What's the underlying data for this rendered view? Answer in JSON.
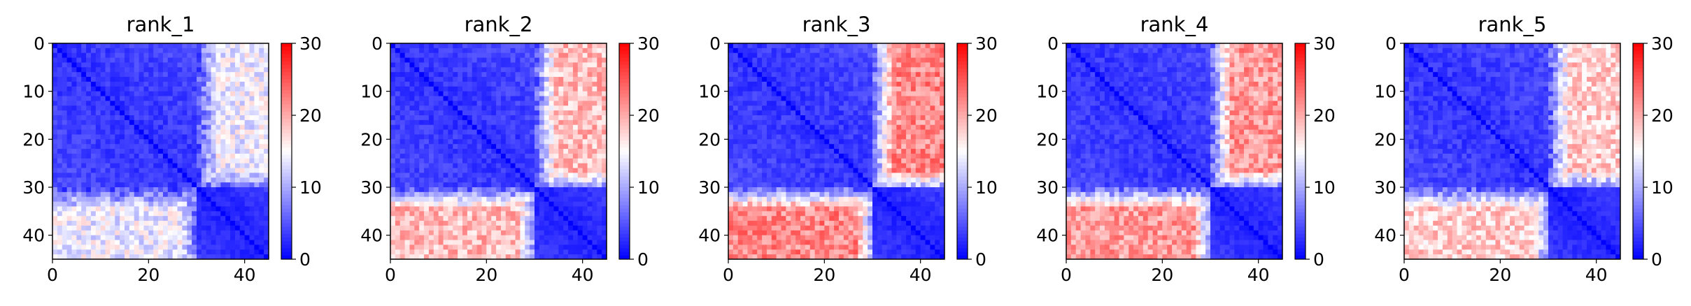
{
  "chart_data": [
    {
      "type": "heatmap",
      "title": "rank_1",
      "matrix_size": 45,
      "xlim": [
        0,
        45
      ],
      "ylim": [
        45,
        0
      ],
      "xticks": [
        0,
        20,
        40
      ],
      "yticks": [
        0,
        10,
        20,
        30,
        40
      ],
      "colormap": "bwr",
      "color_range": [
        0,
        30
      ],
      "colorbar_ticks": [
        0,
        10,
        20,
        30
      ],
      "domain_boundary": 30,
      "intra_domain_value": 3,
      "diagonal_value": 0,
      "inter_domain_value": 14,
      "c_terminal_domain_value": 2
    },
    {
      "type": "heatmap",
      "title": "rank_2",
      "matrix_size": 45,
      "xlim": [
        0,
        45
      ],
      "ylim": [
        45,
        0
      ],
      "xticks": [
        0,
        20,
        40
      ],
      "yticks": [
        0,
        10,
        20,
        30,
        40
      ],
      "colormap": "bwr",
      "color_range": [
        0,
        30
      ],
      "colorbar_ticks": [
        0,
        10,
        20,
        30
      ],
      "domain_boundary": 30,
      "intra_domain_value": 3,
      "diagonal_value": 0,
      "inter_domain_value": 19,
      "c_terminal_domain_value": 2
    },
    {
      "type": "heatmap",
      "title": "rank_3",
      "matrix_size": 45,
      "xlim": [
        0,
        45
      ],
      "ylim": [
        45,
        0
      ],
      "xticks": [
        0,
        20,
        40
      ],
      "yticks": [
        0,
        10,
        20,
        30,
        40
      ],
      "colormap": "bwr",
      "color_range": [
        0,
        30
      ],
      "colorbar_ticks": [
        0,
        10,
        20,
        30
      ],
      "domain_boundary": 30,
      "intra_domain_value": 3,
      "diagonal_value": 0,
      "inter_domain_value": 22,
      "c_terminal_domain_value": 2
    },
    {
      "type": "heatmap",
      "title": "rank_4",
      "matrix_size": 45,
      "xlim": [
        0,
        45
      ],
      "ylim": [
        45,
        0
      ],
      "xticks": [
        0,
        20,
        40
      ],
      "yticks": [
        0,
        10,
        20,
        30,
        40
      ],
      "colormap": "bwr",
      "color_range": [
        0,
        30
      ],
      "colorbar_ticks": [
        0,
        10,
        20,
        30
      ],
      "domain_boundary": 30,
      "intra_domain_value": 3,
      "diagonal_value": 0,
      "inter_domain_value": 21,
      "c_terminal_domain_value": 2
    },
    {
      "type": "heatmap",
      "title": "rank_5",
      "matrix_size": 45,
      "xlim": [
        0,
        45
      ],
      "ylim": [
        45,
        0
      ],
      "xticks": [
        0,
        20,
        40
      ],
      "yticks": [
        0,
        10,
        20,
        30,
        40
      ],
      "colormap": "bwr",
      "color_range": [
        0,
        30
      ],
      "colorbar_ticks": [
        0,
        10,
        20,
        30
      ],
      "domain_boundary": 30,
      "intra_domain_value": 3,
      "diagonal_value": 0,
      "inter_domain_value": 18,
      "c_terminal_domain_value": 2
    }
  ]
}
